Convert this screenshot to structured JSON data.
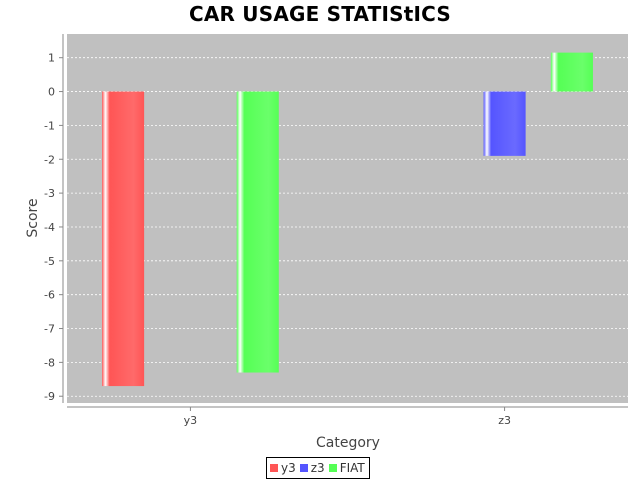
{
  "chart_data": {
    "type": "bar",
    "title": "CAR USAGE STATIStICS",
    "xlabel": "Category",
    "ylabel": "Score",
    "categories": [
      "y3",
      "z3"
    ],
    "series": [
      {
        "name": "y3",
        "color": "#ff5555",
        "values": [
          -8.7,
          null
        ]
      },
      {
        "name": "z3",
        "color": "#5555ff",
        "values": [
          null,
          -1.9
        ]
      },
      {
        "name": "FIAT",
        "color": "#55ff55",
        "values": [
          -8.3,
          1.15
        ]
      }
    ],
    "ylim": [
      -9.2,
      1.7
    ],
    "yticks": [
      1,
      0,
      -1,
      -2,
      -3,
      -4,
      -5,
      -6,
      -7,
      -8,
      -9
    ],
    "grid": true,
    "legend_position": "bottom"
  }
}
